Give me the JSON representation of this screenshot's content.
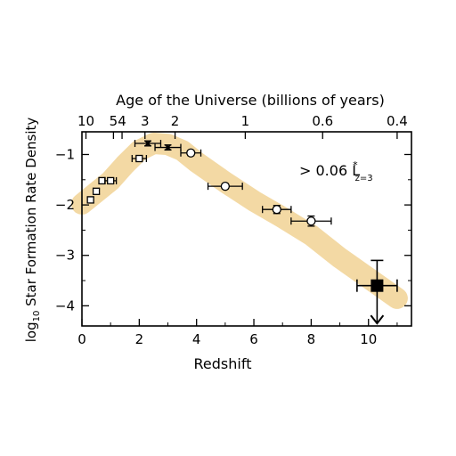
{
  "chart_data": {
    "type": "scatter",
    "title": "",
    "xlabel": "Redshift",
    "ylabel": "log",
    "ylabel_sub": "10",
    "ylabel_rest": " Star Formation Rate Density",
    "top_axis_label": "Age of the Universe (billions of years)",
    "xlim": [
      0,
      11.5
    ],
    "ylim": [
      -4.4,
      -0.55
    ],
    "x_ticks": [
      0,
      2,
      4,
      6,
      8,
      10
    ],
    "x_tick_labels": [
      "0",
      "2",
      "4",
      "6",
      "8",
      "10"
    ],
    "y_ticks": [
      -1,
      -2,
      -3,
      -4
    ],
    "y_tick_labels": [
      "−1",
      "−2",
      "−3",
      "−4"
    ],
    "top_ticks": [
      {
        "z": 0.14,
        "label": "10"
      },
      {
        "z": 1.1,
        "label": "5"
      },
      {
        "z": 1.4,
        "label": "4"
      },
      {
        "z": 2.2,
        "label": "3"
      },
      {
        "z": 3.25,
        "label": "2"
      },
      {
        "z": 5.7,
        "label": "1"
      },
      {
        "z": 8.4,
        "label": "0.6"
      },
      {
        "z": 11.0,
        "label": "0.4"
      }
    ],
    "annotation": {
      "text": "> 0.06 L",
      "sup": "*",
      "sub": "z=3"
    },
    "band": {
      "color": "#f3d9a4",
      "x": [
        0,
        0.5,
        1.0,
        1.5,
        2.0,
        2.5,
        3.0,
        3.5,
        4.0,
        5.0,
        6.0,
        7.0,
        8.0,
        9.0,
        10.0,
        11.0
      ],
      "y": [
        -1.98,
        -1.75,
        -1.52,
        -1.2,
        -0.92,
        -0.78,
        -0.8,
        -0.92,
        -1.15,
        -1.55,
        -1.92,
        -2.25,
        -2.6,
        -3.05,
        -3.45,
        -3.85
      ]
    },
    "series": [
      {
        "marker": "square-open",
        "points": [
          {
            "x": 0.3,
            "y": -1.9,
            "xerr": 0.1,
            "yerr": 0.06
          },
          {
            "x": 0.5,
            "y": -1.73,
            "xerr": 0.1,
            "yerr": 0.05
          },
          {
            "x": 0.7,
            "y": -1.52,
            "xerr": 0.1,
            "yerr": 0.04
          },
          {
            "x": 1.0,
            "y": -1.52,
            "xerr": 0.2,
            "yerr": 0.04
          },
          {
            "x": 2.0,
            "y": -1.08,
            "xerr": 0.25,
            "yerr": 0.04
          }
        ]
      },
      {
        "marker": "cross",
        "points": [
          {
            "x": 2.3,
            "y": -0.78,
            "xerr": 0.45,
            "yerr": 0.05
          },
          {
            "x": 3.0,
            "y": -0.86,
            "xerr": 0.45,
            "yerr": 0.05
          }
        ]
      },
      {
        "marker": "circle-open",
        "points": [
          {
            "x": 3.8,
            "y": -0.97,
            "xerr": 0.35,
            "yerr": 0.05
          },
          {
            "x": 5.0,
            "y": -1.63,
            "xerr": 0.6,
            "yerr": 0.05
          },
          {
            "x": 6.8,
            "y": -2.09,
            "xerr": 0.5,
            "yerr": 0.08
          },
          {
            "x": 8.0,
            "y": -2.32,
            "xerr": 0.7,
            "yerr": 0.1
          }
        ]
      },
      {
        "marker": "square-filled",
        "points": [
          {
            "x": 10.3,
            "y": -3.6,
            "xerr": 0.7,
            "yerr_up": 0.5,
            "yerr_down": 0.75,
            "upper_limit": true
          }
        ]
      }
    ],
    "band_color": "#f3d9a4",
    "grid": false
  }
}
